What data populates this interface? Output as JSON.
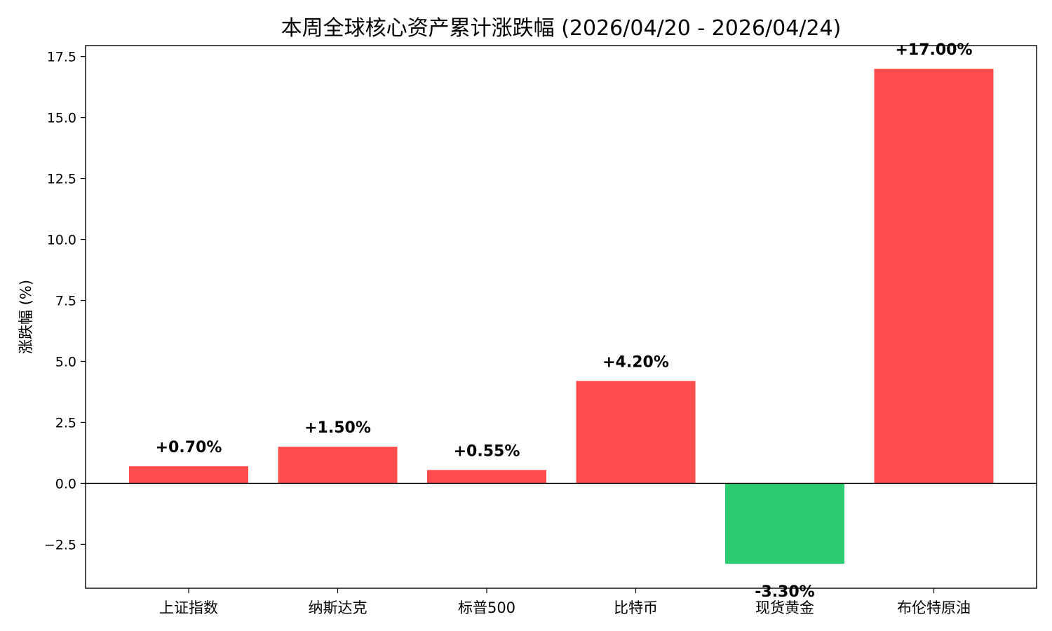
{
  "chart_data": {
    "type": "bar",
    "title": "本周全球核心资产累计涨跌幅 (2026/04/20 - 2026/04/24)",
    "xlabel": "",
    "ylabel": "涨跌幅 (%)",
    "categories": [
      "上证指数",
      "纳斯达克",
      "标普500",
      "比特币",
      "现货黄金",
      "布伦特原油"
    ],
    "values": [
      0.7,
      1.5,
      0.55,
      4.2,
      -3.3,
      17.0
    ],
    "data_labels": [
      "+0.70%",
      "+1.50%",
      "+0.55%",
      "+4.20%",
      "-3.30%",
      "+17.00%"
    ],
    "ylim": [
      -4.3,
      17.95
    ],
    "yticks": [
      -2.5,
      0.0,
      2.5,
      5.0,
      7.5,
      10.0,
      12.5,
      15.0,
      17.5
    ],
    "ytick_labels": [
      "−2.5",
      "0.0",
      "2.5",
      "5.0",
      "7.5",
      "10.0",
      "12.5",
      "15.0",
      "17.5"
    ],
    "grid": false,
    "legend": "none",
    "colors": {
      "positive": "#ff4d4d",
      "negative": "#2ecc71",
      "zero_line": "#000000"
    }
  }
}
